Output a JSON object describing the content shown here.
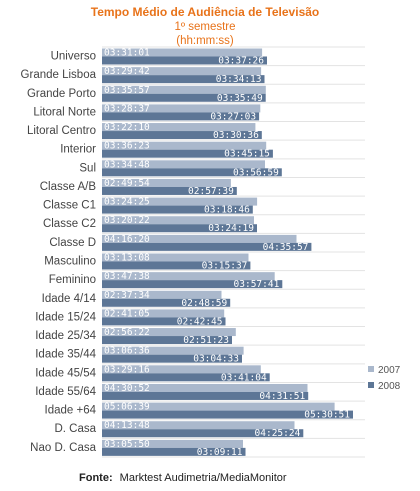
{
  "chart_data": {
    "type": "bar",
    "orientation": "horizontal",
    "title": "Tempo Médio de Audiência  de Televisão",
    "subtitle_line1": "1º semestre",
    "subtitle_line2": "(hh:mm:ss)",
    "source_label": "Fonte:",
    "source_text": "Marktest Audimetria/MediaMonitor",
    "colors": {
      "2007": "#aab8cc",
      "2008": "#5d7696"
    },
    "grid": true,
    "legend_position": "right",
    "categories": [
      "Universo",
      "Grande Lisboa",
      "Grande Porto",
      "Litoral Norte",
      "Litoral Centro",
      "Interior",
      "Sul",
      "Classe A/B",
      "Classe C1",
      "Classe C2",
      "Classe D",
      "Masculino",
      "Feminino",
      "Idade 4/14",
      "Idade 15/24",
      "Idade 25/34",
      "Idade 35/44",
      "Idade 45/54",
      "Idade 55/64",
      "Idade +64",
      "D. Casa",
      "Nao D. Casa"
    ],
    "series": [
      {
        "name": "2007",
        "values": [
          "03:31:01",
          "03:29:42",
          "03:35:57",
          "03:28:37",
          "03:22:10",
          "03:36:23",
          "03:34:48",
          "02:49:54",
          "03:24:25",
          "03:20:22",
          "04:16:20",
          "03:13:08",
          "03:47:38",
          "02:37:34",
          "02:41:05",
          "02:56:22",
          "03:06:36",
          "03:29:16",
          "04:30:52",
          "05:06:39",
          "04:13:48",
          "03:05:50"
        ]
      },
      {
        "name": "2008",
        "values": [
          "03:37:26",
          "03:34:13",
          "03:35:49",
          "03:27:03",
          "03:30:36",
          "03:45:15",
          "03:56:59",
          "02:57:39",
          "03:18:46",
          "03:24:19",
          "04:35:57",
          "03:15:37",
          "03:57:41",
          "02:48:59",
          "02:42:45",
          "02:51:23",
          "03:04:33",
          "03:41:04",
          "04:31:51",
          "05:30:51",
          "04:25:24",
          "03:09:11"
        ]
      }
    ]
  }
}
